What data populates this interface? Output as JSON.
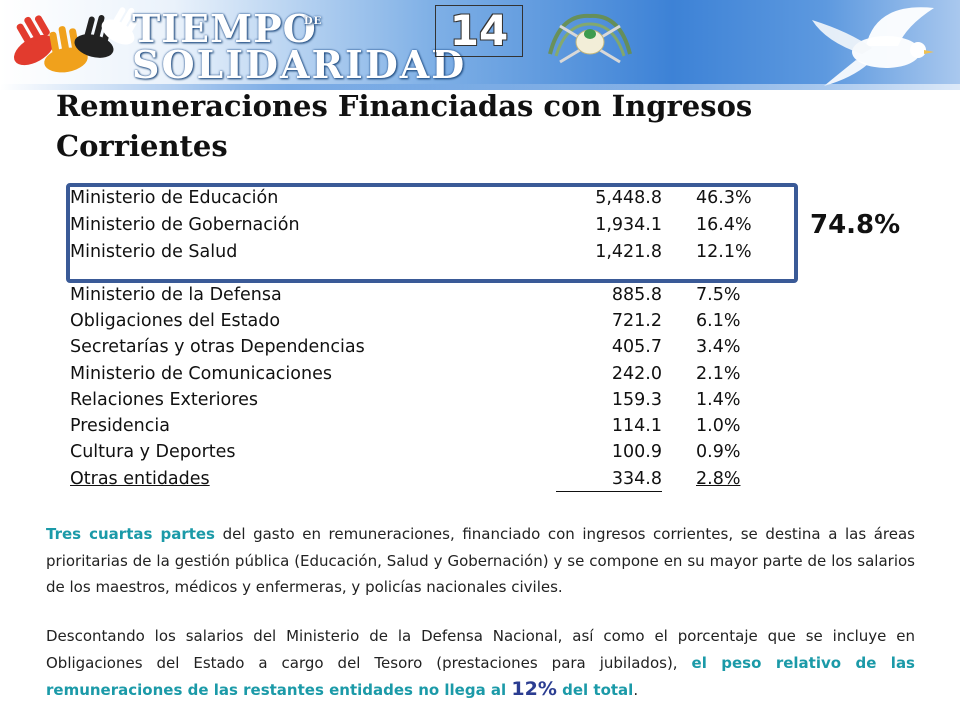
{
  "header": {
    "logo_line1": "TIEMPO",
    "logo_de": "DE",
    "logo_line2": "SOLIDARIDAD",
    "page_number": "14",
    "emblem_icon": "guatemala-coat-of-arms-icon",
    "dove_icon": "white-dove-icon",
    "hands_icon": "colored-hands-icon"
  },
  "title": "Remuneraciones Financiadas con Ingresos Corrientes",
  "table": {
    "rows": [
      {
        "name": "Ministerio de Educación",
        "amount": "5,448.8",
        "pct": "46.3%"
      },
      {
        "name": "Ministerio de Gobernación",
        "amount": "1,934.1",
        "pct": "16.4%"
      },
      {
        "name": "Ministerio de Salud",
        "amount": "1,421.8",
        "pct": "12.1%"
      },
      {
        "name": "Ministerio de la Defensa",
        "amount": "885.8",
        "pct": "7.5%"
      },
      {
        "name": "Obligaciones del Estado",
        "amount": "721.2",
        "pct": "6.1%"
      },
      {
        "name": "Secretarías y otras Dependencias",
        "amount": "405.7",
        "pct": "3.4%"
      },
      {
        "name": "Ministerio de Comunicaciones",
        "amount": "242.0",
        "pct": "2.1%"
      },
      {
        "name": "Relaciones Exteriores",
        "amount": "159.3",
        "pct": "1.4%"
      },
      {
        "name": "Presidencia",
        "amount": "114.1",
        "pct": "1.0%"
      },
      {
        "name": "Cultura y Deportes",
        "amount": "100.9",
        "pct": "0.9%"
      },
      {
        "name": "Otras entidades",
        "amount": "334.8",
        "pct": "2.8%"
      }
    ],
    "highlight_total": "74.8%",
    "highlight_color": "#3a5a97"
  },
  "paragraph1": {
    "lead": "Tres cuartas partes",
    "rest": " del gasto en remuneraciones, financiado con ingresos corrientes, se destina a las áreas prioritarias de la gestión pública (Educación, Salud y Gobernación) y se compone en su mayor parte de los salarios de los maestros, médicos y enfermeras, y policías nacionales civiles."
  },
  "paragraph2": {
    "text": "Descontando los salarios del Ministerio de la Defensa Nacional, así como el porcentaje que se incluye en Obligaciones del Estado a cargo del Tesoro (prestaciones para jubilados), ",
    "highlight1": "el peso relativo de las remuneraciones de las restantes entidades no llega al ",
    "highlight_number": "12%",
    "highlight2": " del total",
    "end": "."
  },
  "colors": {
    "teal_text": "#1b9aa8",
    "number_blue": "#2b3d91"
  }
}
